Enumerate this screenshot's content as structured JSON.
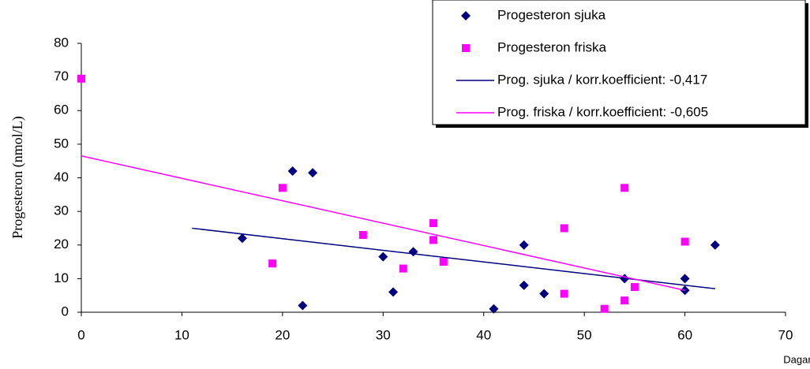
{
  "chart_data": {
    "type": "scatter",
    "xlabel": "Dagar",
    "ylabel": "Progesteron (nmol/L)",
    "xlim": [
      0,
      70
    ],
    "xticks": [
      0,
      10,
      20,
      30,
      40,
      50,
      60,
      70
    ],
    "ylim": [
      0,
      80
    ],
    "yticks": [
      0,
      10,
      20,
      30,
      40,
      50,
      60,
      70,
      80
    ],
    "grid": false,
    "legend": "top-right",
    "series": [
      {
        "name": "Progesteron sjuka",
        "type": "scatter",
        "marker": "diamond",
        "color": "#000080",
        "x": [
          16,
          21,
          22,
          23,
          30,
          31,
          33,
          41,
          44,
          44,
          46,
          54,
          60,
          60,
          63
        ],
        "values": [
          22,
          42,
          2,
          41.5,
          16.5,
          6,
          18,
          1,
          20,
          8,
          5.5,
          10,
          10,
          6.5,
          20
        ]
      },
      {
        "name": "Progesteron friska",
        "type": "scatter",
        "marker": "square",
        "color": "#ff00ff",
        "x": [
          0,
          19,
          20,
          28,
          32,
          35,
          35,
          36,
          48,
          48,
          52,
          54,
          54,
          55,
          60
        ],
        "values": [
          69.5,
          14.5,
          37,
          23,
          13,
          26.5,
          21.5,
          15,
          25,
          5.5,
          1,
          37,
          3.5,
          7.5,
          21
        ]
      },
      {
        "name": "Prog. sjuka / korr.koefficient: -0,417",
        "type": "line",
        "color": "#000080",
        "x": [
          11,
          63
        ],
        "values": [
          25,
          7
        ]
      },
      {
        "name": "Prog. friska / korr.koefficient: -0,605",
        "type": "line",
        "color": "#ff00ff",
        "x": [
          0,
          60
        ],
        "values": [
          46.5,
          6.5
        ]
      }
    ]
  }
}
